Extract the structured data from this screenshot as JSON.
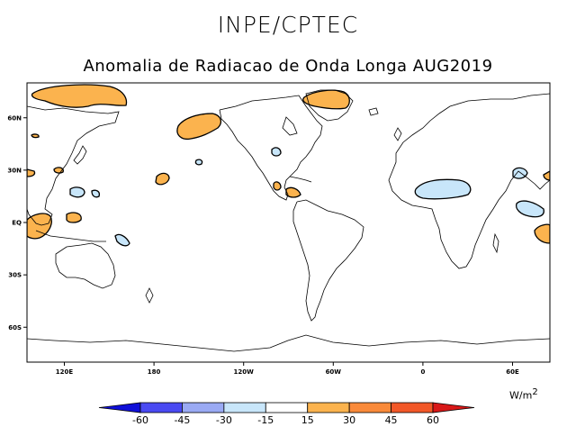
{
  "header": {
    "title": "INPE/CPTEC",
    "subtitle": "Anomalia de Radiacao de Onda Longa AUG2019"
  },
  "map": {
    "x_ticks": [
      {
        "lon": 120,
        "label": "120E"
      },
      {
        "lon": 180,
        "label": "180"
      },
      {
        "lon": 240,
        "label": "120W"
      },
      {
        "lon": 300,
        "label": "60W"
      },
      {
        "lon": 360,
        "label": "0"
      },
      {
        "lon": 420,
        "label": "60E"
      }
    ],
    "y_ticks": [
      {
        "lat": 60,
        "label": "60N"
      },
      {
        "lat": 30,
        "label": "30N"
      },
      {
        "lat": 0,
        "label": "EQ"
      },
      {
        "lat": -30,
        "label": "30S"
      },
      {
        "lat": -60,
        "label": "60S"
      }
    ],
    "lon_range": [
      95,
      445
    ],
    "lat_range": [
      -80,
      80
    ]
  },
  "legend": {
    "levels": [
      "-60",
      "-45",
      "-30",
      "-15",
      "15",
      "30",
      "45",
      "60"
    ],
    "colors": [
      "#1010d8",
      "#4a4af2",
      "#9aaaf4",
      "#c8e6fa",
      "#ffffff",
      "#fbb34e",
      "#f98a3a",
      "#f25828",
      "#d81818"
    ],
    "units": "W/m",
    "units_exp": "2"
  },
  "colors": {
    "positive": "#fbb34e",
    "negative": "#c8e6fa",
    "land": "#000000"
  }
}
